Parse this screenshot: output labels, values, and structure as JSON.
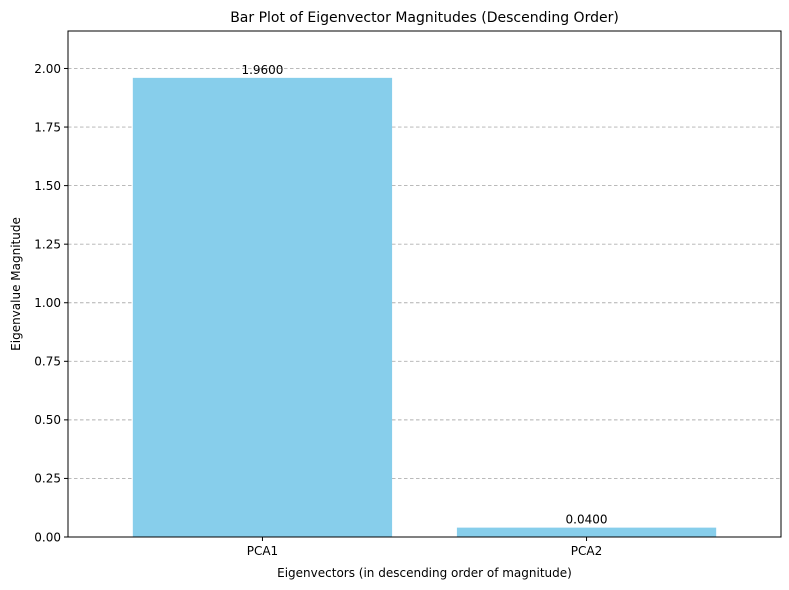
{
  "chart_data": {
    "type": "bar",
    "title": "Bar Plot of Eigenvector Magnitudes (Descending Order)",
    "xlabel": "Eigenvectors (in descending order of magnitude)",
    "ylabel": "Eigenvalue Magnitude",
    "categories": [
      "PCA1",
      "PCA2"
    ],
    "values": [
      1.96,
      0.04
    ],
    "data_labels": [
      "1.9600",
      "0.0400"
    ],
    "ylim": [
      0,
      2.16
    ],
    "yticks": [
      0.0,
      0.25,
      0.5,
      0.75,
      1.0,
      1.25,
      1.5,
      1.75,
      2.0
    ],
    "ytick_labels": [
      "0.00",
      "0.25",
      "0.50",
      "0.75",
      "1.00",
      "1.25",
      "1.50",
      "1.75",
      "2.00"
    ],
    "grid": "y-dashed",
    "bar_color": "#87CEEB",
    "grid_color": "#b0b0b0"
  }
}
